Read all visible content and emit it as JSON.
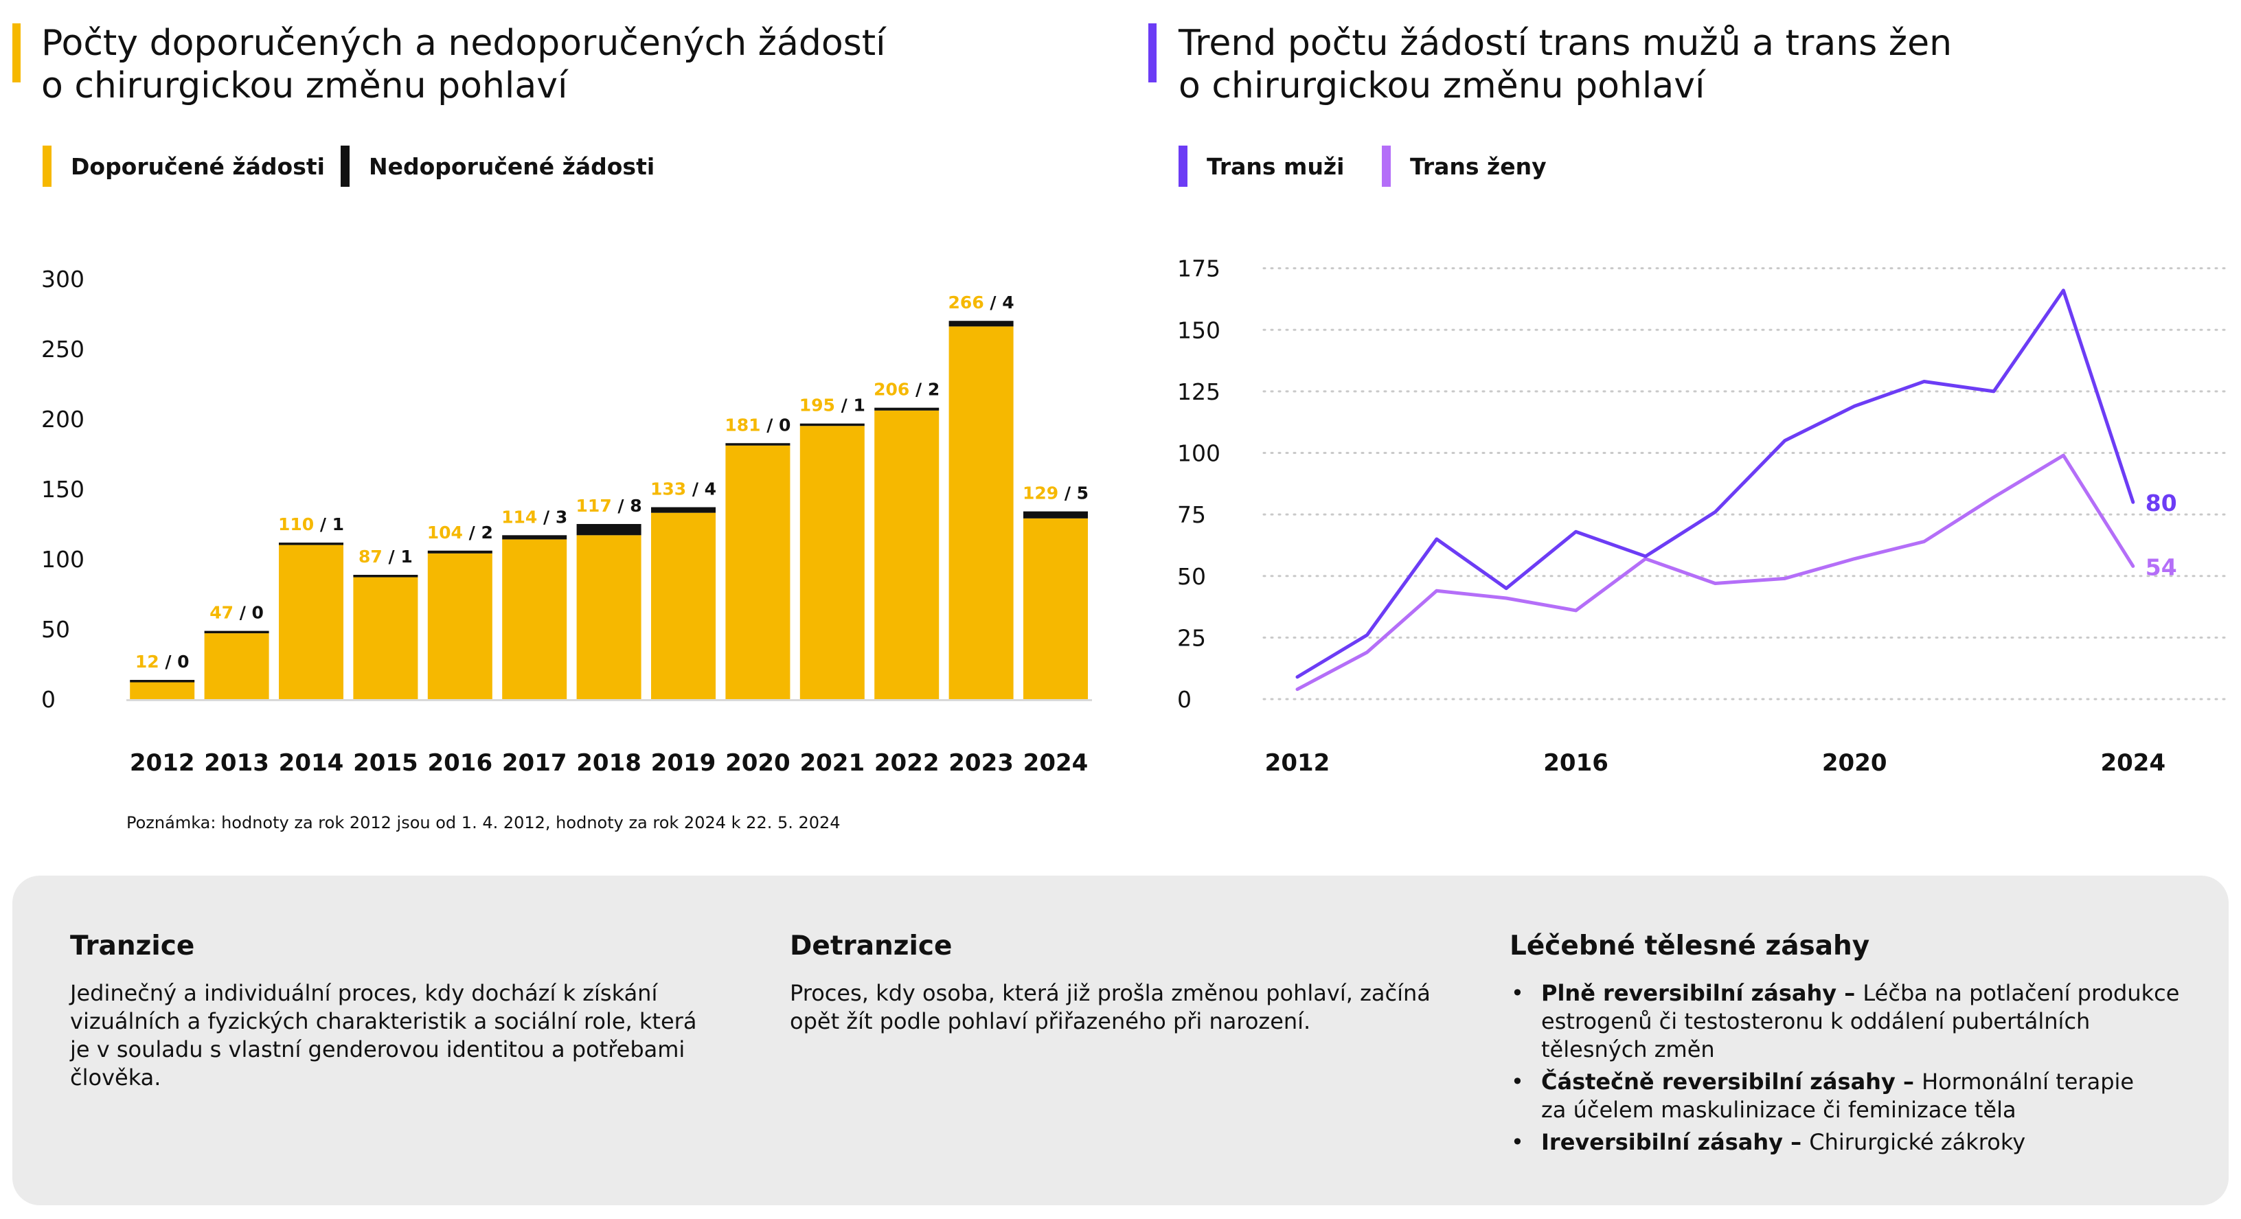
{
  "left_panel": {
    "title_line1": "Počty doporučených a nedoporučených žádostí",
    "title_line2": "o chirurgickou změnu pohlaví",
    "accent_color": "#f6b800",
    "legend": [
      {
        "label": "Doporučené žádosti",
        "color": "#f6b800"
      },
      {
        "label": "Nedoporučené žádosti",
        "color": "#111111"
      }
    ],
    "note": "Poznámka: hodnoty za rok 2012 jsou od 1. 4. 2012, hodnoty za rok 2024 k 22. 5. 2024"
  },
  "right_panel": {
    "title_line1": "Trend počtu žádostí trans mužů a trans žen",
    "title_line2": "o chirurgickou změnu pohlaví",
    "accent_color": "#6c3cf5",
    "legend": [
      {
        "label": "Trans muži",
        "color": "#6c3cf5"
      },
      {
        "label": "Trans ženy",
        "color": "#b46ef8"
      }
    ]
  },
  "chart_data": [
    {
      "type": "bar",
      "stacked": true,
      "categories": [
        "2012",
        "2013",
        "2014",
        "2015",
        "2016",
        "2017",
        "2018",
        "2019",
        "2020",
        "2021",
        "2022",
        "2023",
        "2024"
      ],
      "series": [
        {
          "name": "Doporučené žádosti",
          "color": "#f6b800",
          "values": [
            12,
            47,
            110,
            87,
            104,
            114,
            117,
            133,
            181,
            195,
            206,
            266,
            129
          ]
        },
        {
          "name": "Nedoporučené žádosti",
          "color": "#111111",
          "values": [
            0,
            0,
            1,
            1,
            2,
            3,
            8,
            4,
            0,
            1,
            2,
            4,
            5
          ]
        }
      ],
      "data_labels": [
        "12 / 0",
        "47 / 0",
        "110 / 1",
        "87 / 1",
        "104 / 2",
        "114 / 3",
        "117 / 8",
        "133 / 4",
        "181 / 0",
        "195 / 1",
        "206 / 2",
        "266 / 4",
        "129 / 5"
      ],
      "yticks": [
        0,
        50,
        100,
        150,
        200,
        250,
        300
      ],
      "ylim": [
        0,
        300
      ],
      "grid": false,
      "legend_position": "top-left"
    },
    {
      "type": "line",
      "x": [
        2012,
        2013,
        2014,
        2015,
        2016,
        2017,
        2018,
        2019,
        2020,
        2021,
        2022,
        2023,
        2024
      ],
      "xticks": [
        2012,
        2016,
        2020,
        2024
      ],
      "yticks": [
        0,
        25,
        50,
        75,
        100,
        125,
        150,
        175
      ],
      "ylim": [
        0,
        175
      ],
      "grid": true,
      "legend_position": "top-left",
      "series": [
        {
          "name": "Trans muži",
          "color": "#6c3cf5",
          "values": [
            9,
            26,
            65,
            45,
            68,
            58,
            76,
            105,
            119,
            129,
            125,
            166,
            80
          ],
          "end_label": "80"
        },
        {
          "name": "Trans ženy",
          "color": "#b46ef8",
          "values": [
            4,
            19,
            44,
            41,
            36,
            57,
            47,
            49,
            57,
            64,
            82,
            99,
            54
          ],
          "end_label": "54"
        }
      ]
    }
  ],
  "info": {
    "col1": {
      "heading": "Tranzice",
      "lines": [
        "Jedinečný a individuální proces, kdy dochází k získání",
        "vizuálních a fyzických charakteristik a sociální role, která",
        "je v souladu s vlastní genderovou identitou a potřebami",
        "člověka."
      ]
    },
    "col2": {
      "heading": "Detranzice",
      "lines": [
        "Proces, kdy osoba, která již prošla změnou pohlaví, začíná",
        "opět žít podle pohlaví přiřazeného při narození."
      ]
    },
    "col3": {
      "heading": "Léčebné tělesné zásahy",
      "items": [
        {
          "bold": "Plně reversibilní zásahy – ",
          "lines": [
            "Léčba na potlačení produkce",
            "estrogenů či testosteronu k oddálení pubertálních",
            "tělesných změn"
          ]
        },
        {
          "bold": "Částečně reversibilní zásahy – ",
          "lines": [
            "Hormonální terapie",
            "za účelem maskulinizace či feminizace těla"
          ]
        },
        {
          "bold": "Ireversibilní zásahy – ",
          "lines": [
            "Chirurgické zákroky"
          ]
        }
      ]
    }
  }
}
